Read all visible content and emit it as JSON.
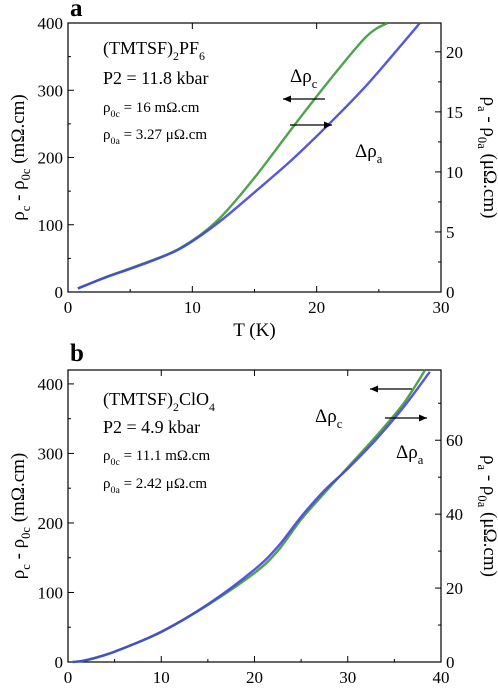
{
  "chart_data": [
    {
      "type": "line",
      "panel_label": "a",
      "xlabel": "T (K)",
      "ylabel_left": {
        "main": "ρ",
        "sub1": "c",
        "mid": " - ρ",
        "sub2": "0c",
        "tail": " (mΩ.cm)"
      },
      "ylabel_right": {
        "main": "ρ",
        "sub1": "a",
        "mid": " - ρ",
        "sub2": "0a",
        "tail": " (μΩ.cm)"
      },
      "xlim": [
        0,
        30
      ],
      "ylim_left": [
        0,
        400
      ],
      "ylim_right": [
        0,
        22.4
      ],
      "xticks": [
        0,
        10,
        20,
        30
      ],
      "yticks_left": [
        0,
        100,
        200,
        300,
        400
      ],
      "yticks_right": [
        0,
        5,
        10,
        15,
        20
      ],
      "annotations": {
        "compound": {
          "pre": "(TMTSF)",
          "sub": "2",
          "post": "PF",
          "sub2": "6"
        },
        "pressure": "P2 = 11.8 kbar",
        "rho0c": {
          "pre": "ρ",
          "sub": "0c",
          "post": " = 16 mΩ.cm"
        },
        "rho0a": {
          "pre": "ρ",
          "sub": "0a",
          "post": " = 3.27 μΩ.cm"
        }
      },
      "series": [
        {
          "name": {
            "pre": "Δρ",
            "sub": "c"
          },
          "axis": "left",
          "color": "#3a9a3a",
          "x": [
            0.8,
            3,
            6,
            9,
            12,
            15,
            18,
            21,
            24,
            25.7
          ],
          "y": [
            5,
            22,
            42,
            65,
            106,
            170,
            243,
            314,
            380,
            400
          ]
        },
        {
          "name": {
            "pre": "Δρ",
            "sub": "a"
          },
          "axis": "right",
          "color": "#4444dd",
          "x": [
            0.8,
            3,
            6,
            9,
            12,
            15,
            18,
            21,
            24,
            27,
            28.3
          ],
          "y": [
            0.3,
            1.2,
            2.3,
            3.6,
            5.7,
            8.3,
            11.0,
            14.0,
            17.2,
            20.8,
            22.4
          ]
        }
      ]
    },
    {
      "type": "line",
      "panel_label": "b",
      "xlabel": "T (K)",
      "ylabel_left": {
        "main": "ρ",
        "sub1": "c",
        "mid": " - ρ",
        "sub2": "0c",
        "tail": " (mΩ.cm)"
      },
      "ylabel_right": {
        "main": "ρ",
        "sub1": "a",
        "mid": " - ρ",
        "sub2": "0a",
        "tail": " (μΩ.cm)"
      },
      "xlim": [
        0,
        40
      ],
      "ylim_left": [
        0,
        420
      ],
      "ylim_right": [
        0,
        79
      ],
      "xticks": [
        0,
        10,
        20,
        30,
        40
      ],
      "yticks_left": [
        0,
        100,
        200,
        300,
        400
      ],
      "yticks_right": [
        0,
        20,
        40,
        60
      ],
      "annotations": {
        "compound": {
          "pre": "(TMTSF)",
          "sub": "2",
          "post": "ClO",
          "sub2": "4"
        },
        "pressure": "P2 = 4.9 kbar",
        "rho0c": {
          "pre": "ρ",
          "sub": "0c",
          "post": " = 11.1 mΩ.cm"
        },
        "rho0a": {
          "pre": "ρ",
          "sub": "0a",
          "post": " = 2.42 μΩ.cm"
        }
      },
      "series": [
        {
          "name": {
            "pre": "Δρ",
            "sub": "c"
          },
          "axis": "left",
          "color": "#3a9a3a",
          "x": [
            0.5,
            2,
            5,
            10,
            15,
            20,
            22.5,
            25,
            27.5,
            30,
            33,
            36,
            38.3
          ],
          "y": [
            0,
            3,
            15,
            43,
            82,
            128,
            160,
            205,
            243,
            280,
            324,
            372,
            420
          ]
        },
        {
          "name": {
            "pre": "Δρ",
            "sub": "a"
          },
          "axis": "right",
          "color": "#4444dd",
          "x": [
            0.5,
            2,
            5,
            10,
            15,
            20,
            22.5,
            25,
            27.5,
            30,
            33,
            36,
            38.8
          ],
          "y": [
            0,
            0.5,
            2.8,
            8.2,
            15.6,
            25,
            31.2,
            39.3,
            46.4,
            52.3,
            60.1,
            69.0,
            78.5
          ]
        }
      ]
    }
  ]
}
